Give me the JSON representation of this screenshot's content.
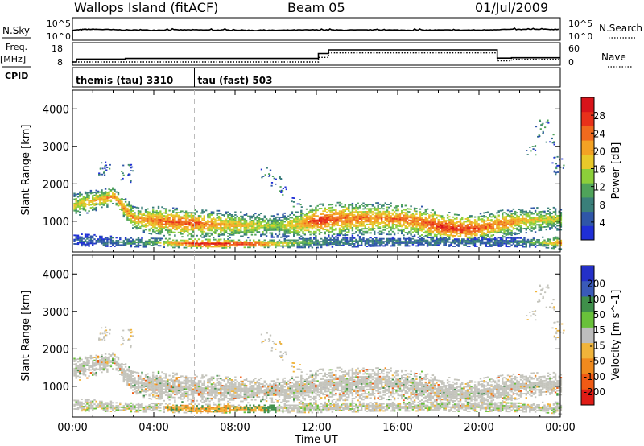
{
  "header": {
    "station": "Wallops Island (fitACF)",
    "beam": "Beam 05",
    "date": "01/Jul/2009"
  },
  "left_labels": {
    "nsky": "N.Sky",
    "freq": "Freq.",
    "freq_unit": "[MHz]",
    "cpid": "CPID"
  },
  "right_labels": {
    "nsearch": "N.Search",
    "nave": "Nave"
  },
  "cpid_modes": [
    {
      "label": "themis (tau) 3310",
      "start_hour": 0
    },
    {
      "label": "tau (fast) 503",
      "start_hour": 6
    }
  ],
  "colors": {
    "power_scale": [
      "#1f2fd6",
      "#2f56a8",
      "#3a7f7a",
      "#4fa35a",
      "#8ccf3a",
      "#e8c92a",
      "#f3a224",
      "#f06a1e",
      "#e8311a",
      "#d8141a"
    ],
    "velocity_scale": [
      "#2430c8",
      "#3a5ab8",
      "#3f8f4a",
      "#69c13a",
      "#bdbdbd",
      "#f0b43a",
      "#f08a1e",
      "#ef5a14",
      "#e01c16"
    ],
    "grey_ground": "#c4c4bc"
  },
  "chart_data": [
    {
      "type": "line",
      "name": "noise-panel",
      "y_left_label": "N.Sky",
      "y_left_ticks": [
        "10^5",
        "10^0"
      ],
      "y_right_label": "N.Search",
      "y_right_ticks": [
        "10^5",
        "10^0"
      ],
      "x_hours": [
        0,
        0.5,
        1,
        2,
        3,
        4,
        5,
        6,
        7,
        8,
        9,
        10,
        11,
        12,
        13,
        14,
        15,
        16,
        17,
        18,
        19,
        20,
        21,
        22,
        23,
        24
      ],
      "values": [
        3.2,
        3.6,
        3.7,
        3.5,
        3.3,
        3.3,
        3.4,
        3.4,
        3.3,
        3.3,
        3.2,
        3.2,
        3.3,
        3.4,
        3.3,
        3.3,
        3.4,
        3.3,
        3.3,
        3.3,
        3.3,
        3.3,
        3.6,
        3.6,
        3.6,
        3.7
      ]
    },
    {
      "type": "line",
      "name": "frequency-panel",
      "y_left_ticks": [
        "18",
        "8"
      ],
      "y_right_label": "Nave",
      "y_right_ticks": [
        "60",
        "0"
      ],
      "freq_mhz_steps": [
        {
          "from": 0,
          "to": 0.2,
          "value": 8.0
        },
        {
          "from": 0.2,
          "to": 2.6,
          "value": 10.1
        },
        {
          "from": 2.6,
          "to": 5.9,
          "value": 10.6
        },
        {
          "from": 5.9,
          "to": 12.1,
          "value": 10.6
        },
        {
          "from": 12.1,
          "to": 12.6,
          "value": 14.2
        },
        {
          "from": 12.6,
          "to": 20.9,
          "value": 16.8
        },
        {
          "from": 20.9,
          "to": 21.6,
          "value": 10.8
        },
        {
          "from": 21.6,
          "to": 24,
          "value": 11.1
        }
      ],
      "nave_steps": [
        {
          "from": 0,
          "to": 12.1,
          "value": 0
        },
        {
          "from": 12.1,
          "to": 12.6,
          "value": 20
        },
        {
          "from": 12.6,
          "to": 20.9,
          "value": 40
        },
        {
          "from": 20.9,
          "to": 21.6,
          "value": 5
        },
        {
          "from": 21.6,
          "to": 24,
          "value": 12
        }
      ]
    },
    {
      "type": "heatmap",
      "name": "power-panel",
      "ylabel": "Slant Range [km]",
      "y_ticks": [
        1000,
        2000,
        3000,
        4000
      ],
      "ylim": [
        180,
        4500
      ],
      "xlim": [
        0,
        24
      ],
      "colorbar_label": "Power [dB]",
      "colorbar_ticks": [
        4,
        8,
        12,
        16,
        20,
        24,
        28
      ],
      "colorbar_range": [
        0,
        32
      ],
      "bands": [
        {
          "h": [
            0,
            1,
            2,
            3,
            4,
            5,
            6,
            7,
            8,
            9,
            10,
            11,
            12,
            13,
            14,
            15,
            16,
            17,
            18,
            19,
            20,
            21,
            22,
            23,
            24
          ],
          "center": [
            1420,
            1520,
            1650,
            1050,
            1000,
            950,
            920,
            900,
            880,
            870,
            850,
            900,
            1000,
            1050,
            1050,
            1060,
            1050,
            980,
            850,
            770,
            800,
            900,
            1000,
            1020,
            1050
          ],
          "width": [
            320,
            280,
            240,
            300,
            380,
            380,
            360,
            360,
            340,
            330,
            300,
            360,
            440,
            440,
            420,
            420,
            420,
            420,
            400,
            380,
            380,
            360,
            340,
            320,
            300
          ],
          "power": [
            18,
            20,
            22,
            22,
            24,
            26,
            26,
            22,
            20,
            18,
            14,
            20,
            28,
            26,
            24,
            24,
            24,
            24,
            28,
            28,
            26,
            24,
            20,
            18,
            16
          ]
        },
        {
          "h": [
            0,
            1,
            2,
            3,
            4,
            5,
            6,
            7,
            8,
            9,
            10,
            11,
            12,
            13,
            14,
            15,
            16,
            17,
            18,
            19,
            20,
            21,
            22,
            23,
            24
          ],
          "center": [
            480,
            450,
            430,
            420,
            410,
            400,
            390,
            380,
            380,
            380,
            380,
            400,
            420,
            440,
            440,
            440,
            440,
            440,
            430,
            430,
            430,
            430,
            420,
            410,
            400
          ],
          "width": [
            160,
            160,
            140,
            140,
            140,
            140,
            140,
            140,
            120,
            120,
            120,
            140,
            160,
            160,
            160,
            140,
            140,
            140,
            140,
            140,
            140,
            140,
            140,
            140,
            180
          ],
          "power": [
            6,
            6,
            8,
            10,
            12,
            22,
            30,
            30,
            30,
            26,
            20,
            14,
            10,
            8,
            8,
            8,
            8,
            8,
            8,
            8,
            8,
            6,
            8,
            14,
            24
          ]
        }
      ]
    },
    {
      "type": "heatmap",
      "name": "velocity-panel",
      "ylabel": "Slant Range [km]",
      "y_ticks": [
        1000,
        2000,
        3000,
        4000
      ],
      "ylim": [
        180,
        4500
      ],
      "xlim": [
        0,
        24
      ],
      "xlabel": "Time UT",
      "x_ticks": [
        "00:00",
        "04:00",
        "08:00",
        "12:00",
        "16:00",
        "20:00",
        "00:00"
      ],
      "colorbar_label": "Velocity [m s^-1]",
      "colorbar_ticks": [
        "200",
        "100",
        "50",
        "15",
        "-15",
        "-50",
        "-100",
        "-200"
      ],
      "note": "Upper band mostly ground scatter (grey); lower band shows negative velocities -50 to -15 around 05:00-09:00"
    }
  ]
}
